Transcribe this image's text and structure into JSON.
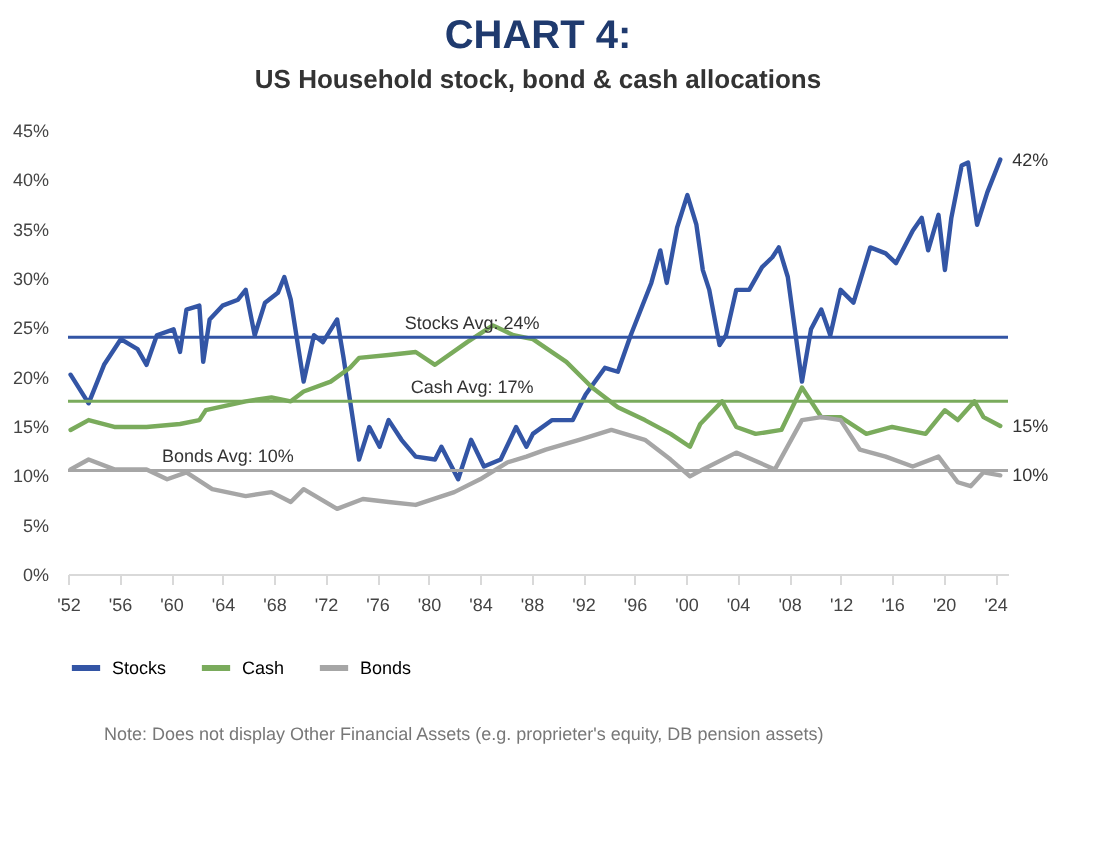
{
  "chart_data": {
    "type": "line",
    "title": "CHART 4:",
    "subtitle": "US Household stock, bond & cash allocations",
    "xlim": [
      1952,
      2025
    ],
    "xticks": [
      {
        "value": 1952,
        "label": "'52"
      },
      {
        "value": 1956,
        "label": "'56"
      },
      {
        "value": 1960,
        "label": "'60"
      },
      {
        "value": 1964,
        "label": "'64"
      },
      {
        "value": 1968,
        "label": "'68"
      },
      {
        "value": 1972,
        "label": "'72"
      },
      {
        "value": 1976,
        "label": "'76"
      },
      {
        "value": 1980,
        "label": "'80"
      },
      {
        "value": 1984,
        "label": "'84"
      },
      {
        "value": 1988,
        "label": "'88"
      },
      {
        "value": 1992,
        "label": "'92"
      },
      {
        "value": 1996,
        "label": "'96"
      },
      {
        "value": 2000,
        "label": "'00"
      },
      {
        "value": 2004,
        "label": "'04"
      },
      {
        "value": 2008,
        "label": "'08"
      },
      {
        "value": 2012,
        "label": "'12"
      },
      {
        "value": 2016,
        "label": "'16"
      },
      {
        "value": 2020,
        "label": "'20"
      },
      {
        "value": 2024,
        "label": "'24"
      }
    ],
    "ylim": [
      0,
      45
    ],
    "yticks": [
      {
        "value": 0,
        "label": "0%"
      },
      {
        "value": 5,
        "label": "5%"
      },
      {
        "value": 10,
        "label": "10%"
      },
      {
        "value": 15,
        "label": "15%"
      },
      {
        "value": 20,
        "label": "20%"
      },
      {
        "value": 25,
        "label": "25%"
      },
      {
        "value": 30,
        "label": "30%"
      },
      {
        "value": 35,
        "label": "35%"
      },
      {
        "value": 40,
        "label": "40%"
      },
      {
        "value": 45,
        "label": "45%"
      }
    ],
    "legend": "bottom",
    "series": [
      {
        "name": "Stocks",
        "color": "#3355a5",
        "x": [
          1952.2,
          1953.6,
          1954.8,
          1956.1,
          1957.4,
          1958.1,
          1958.9,
          1960.2,
          1960.7,
          1961.2,
          1962.2,
          1962.5,
          1963,
          1964,
          1965.2,
          1965.8,
          1966.5,
          1967.3,
          1968.3,
          1968.8,
          1969.3,
          1970.3,
          1971.1,
          1971.8,
          1972.9,
          1973.4,
          1974.6,
          1975.4,
          1976.2,
          1976.9,
          1977.9,
          1979,
          1980.5,
          1981,
          1982.3,
          1983.3,
          1984.3,
          1985.6,
          1986.8,
          1987.6,
          1988.1,
          1989.6,
          1991.2,
          1992.2,
          1993.7,
          1994.7,
          1995.7,
          1997.3,
          1998,
          1998.5,
          1999.3,
          2000.1,
          2000.8,
          2001.3,
          2001.8,
          2002.6,
          2003.1,
          2003.9,
          2004.9,
          2005.9,
          2006.7,
          2007.2,
          2007.9,
          2009,
          2009.7,
          2010.5,
          2011.2,
          2012,
          2013,
          2014.3,
          2015.5,
          2016.3,
          2017.6,
          2018.3,
          2018.8,
          2019.6,
          2020.1,
          2020.6,
          2021.4,
          2021.9,
          2022.6,
          2023.4,
          2024.4
        ],
        "values": [
          20.2,
          17.3,
          21.2,
          23.8,
          22.8,
          21.2,
          24.2,
          24.8,
          22.5,
          26.8,
          27.2,
          21.5,
          25.8,
          27.2,
          27.8,
          28.8,
          24.2,
          27.5,
          28.5,
          30.1,
          27.8,
          19.5,
          24.2,
          23.5,
          25.8,
          21.9,
          11.6,
          14.9,
          12.9,
          15.6,
          13.6,
          11.9,
          11.6,
          12.9,
          9.6,
          13.6,
          10.9,
          11.6,
          14.9,
          12.9,
          14.2,
          15.6,
          15.6,
          18.2,
          20.9,
          20.5,
          24.2,
          29.5,
          32.8,
          29.5,
          35.1,
          38.4,
          35.4,
          30.8,
          28.8,
          23.2,
          24.2,
          28.8,
          28.8,
          31.1,
          32.1,
          33.1,
          30.1,
          19.5,
          24.8,
          26.8,
          24.2,
          28.8,
          27.5,
          33.1,
          32.5,
          31.5,
          34.8,
          36.1,
          32.8,
          36.4,
          30.8,
          36.1,
          41.4,
          41.7,
          35.4,
          38.7,
          42
        ],
        "value_labels": [
          null,
          null,
          null,
          null,
          null,
          null,
          null,
          null,
          null,
          null,
          null,
          null,
          null,
          null,
          null,
          null,
          null,
          null,
          null,
          null,
          null,
          null,
          null,
          null,
          null,
          null,
          null,
          null,
          null,
          null,
          null,
          null,
          null,
          null,
          null,
          null,
          null,
          null,
          null,
          null,
          null,
          null,
          null,
          null,
          null,
          null,
          null,
          null,
          null,
          null,
          null,
          null,
          null,
          null,
          null,
          null,
          null,
          null,
          null,
          null,
          null,
          null,
          null,
          null,
          null,
          null,
          null,
          null,
          null,
          null,
          null,
          null,
          null,
          null,
          null,
          null,
          null,
          null,
          null,
          null,
          null,
          null,
          "42%"
        ]
      },
      {
        "name": "Cash",
        "color": "#7aab5c",
        "x": [
          1952.2,
          1953.6,
          1955.6,
          1958.1,
          1960.7,
          1962.2,
          1962.7,
          1965.8,
          1967.8,
          1969.3,
          1970.3,
          1972.4,
          1973.9,
          1974.6,
          1976.9,
          1979,
          1980.5,
          1983,
          1985,
          1986.6,
          1988.1,
          1990.7,
          1992.7,
          1994.7,
          1996.8,
          1998.8,
          2000.3,
          2001.1,
          2002.8,
          2003.9,
          2005.4,
          2007.4,
          2009,
          2010.5,
          2012,
          2014,
          2016,
          2018.6,
          2020.1,
          2021.1,
          2022.4,
          2023.1,
          2024.4
        ],
        "values": [
          14.6,
          15.6,
          14.9,
          14.9,
          15.2,
          15.6,
          16.6,
          17.5,
          17.9,
          17.5,
          18.5,
          19.5,
          20.9,
          21.9,
          22.2,
          22.5,
          21.2,
          23.5,
          25.2,
          24.2,
          23.8,
          21.5,
          18.9,
          16.9,
          15.6,
          14.2,
          12.9,
          15.2,
          17.5,
          14.9,
          14.2,
          14.6,
          18.9,
          15.9,
          15.9,
          14.2,
          14.9,
          14.2,
          16.6,
          15.6,
          17.5,
          15.9,
          15
        ],
        "value_labels": [
          null,
          null,
          null,
          null,
          null,
          null,
          null,
          null,
          null,
          null,
          null,
          null,
          null,
          null,
          null,
          null,
          null,
          null,
          null,
          null,
          null,
          null,
          null,
          null,
          null,
          null,
          null,
          null,
          null,
          null,
          null,
          null,
          null,
          null,
          null,
          null,
          null,
          null,
          null,
          null,
          null,
          null,
          "15%"
        ]
      },
      {
        "name": "Bonds",
        "color": "#a6a6a6",
        "x": [
          1952.2,
          1953.6,
          1955.6,
          1958.1,
          1959.7,
          1961.2,
          1963.2,
          1965.8,
          1967.8,
          1969.3,
          1970.3,
          1972.9,
          1974.9,
          1976.9,
          1979,
          1982,
          1984,
          1986.1,
          1987.6,
          1989.1,
          1991.7,
          1994.2,
          1996.8,
          1998.8,
          2000.3,
          2001.3,
          2003.9,
          2006.9,
          2009,
          2010.5,
          2012,
          2013.5,
          2015.5,
          2017.6,
          2019.6,
          2021.1,
          2022.1,
          2023.1,
          2024.4
        ],
        "values": [
          10.6,
          11.6,
          10.6,
          10.6,
          9.6,
          10.3,
          8.6,
          7.9,
          8.3,
          7.3,
          8.6,
          6.6,
          7.6,
          7.3,
          7.0,
          8.3,
          9.6,
          11.3,
          11.9,
          12.6,
          13.6,
          14.6,
          13.6,
          11.6,
          9.9,
          10.6,
          12.3,
          10.6,
          15.6,
          15.9,
          15.6,
          12.6,
          11.9,
          10.9,
          11.9,
          9.3,
          8.9,
          10.3,
          10
        ],
        "value_labels": [
          null,
          null,
          null,
          null,
          null,
          null,
          null,
          null,
          null,
          null,
          null,
          null,
          null,
          null,
          null,
          null,
          null,
          null,
          null,
          null,
          null,
          null,
          null,
          null,
          null,
          null,
          null,
          null,
          null,
          null,
          null,
          null,
          null,
          null,
          null,
          null,
          null,
          null,
          "10%"
        ]
      }
    ],
    "ref_lines": [
      {
        "axis": "y",
        "value": 24,
        "label": "Stocks Avg: 24%",
        "color": "#3355a5"
      },
      {
        "axis": "y",
        "value": 17.5,
        "label": "Cash Avg: 17%",
        "color": "#7aab5c"
      },
      {
        "axis": "y",
        "value": 10.5,
        "label": "Bonds Avg: 10%",
        "color": "#a6a6a6"
      }
    ],
    "annotations": [
      "Note: Does not display Other Financial Assets (e.g. proprieter's equity, DB pension assets)"
    ]
  }
}
